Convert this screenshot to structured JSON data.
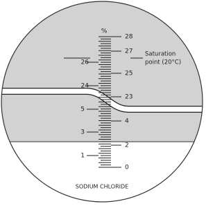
{
  "unit": "%",
  "scale": {
    "right": [
      28,
      27,
      25,
      23,
      4,
      2,
      0
    ],
    "left": [
      26,
      24,
      5,
      3,
      1
    ]
  },
  "annotation": [
    "Saturation",
    "point (20°C)"
  ],
  "label": "SODIUM CHLORIDE"
}
